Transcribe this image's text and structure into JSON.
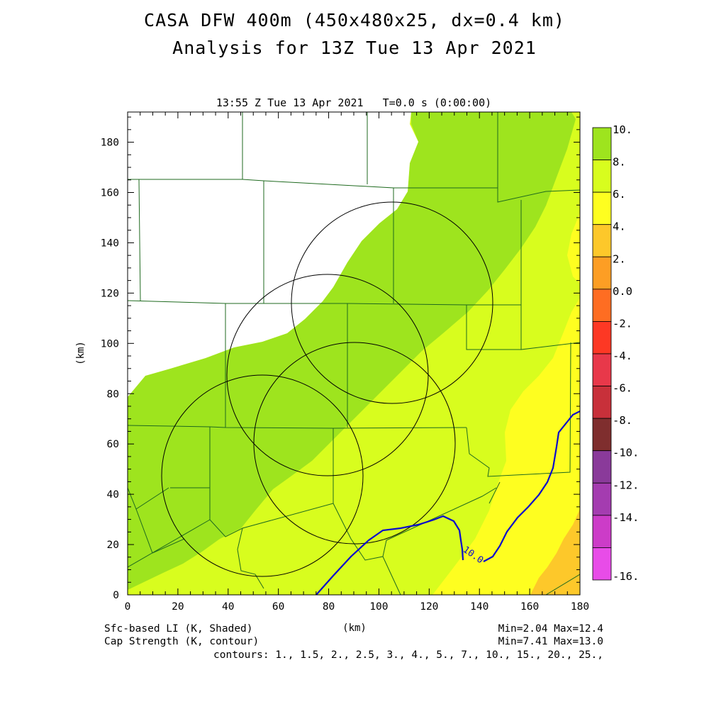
{
  "header": {
    "title_line1": "CASA DFW 400m (450x480x25, dx=0.4 km)",
    "title_line2": "Analysis for 13Z Tue 13 Apr 2021",
    "valid_time": "13:55 Z Tue 13 Apr 2021   T=0.0 s (0:00:00)"
  },
  "axes": {
    "xlabel": "(km)",
    "ylabel": "(km)",
    "x_ticks": [
      "0",
      "20",
      "40",
      "60",
      "80",
      "100",
      "120",
      "140",
      "160",
      "180"
    ],
    "y_ticks": [
      "0",
      "20",
      "40",
      "60",
      "80",
      "100",
      "120",
      "140",
      "160",
      "180"
    ],
    "xlim": [
      0,
      180
    ],
    "ylim": [
      0,
      192
    ]
  },
  "colorbar": {
    "labels": [
      "10.",
      "8.",
      "6.",
      "4.",
      "2.",
      "0.0",
      "-2.",
      "-4.",
      "-6.",
      "-8.",
      "-10.",
      "-12.",
      "-14.",
      "-16."
    ],
    "colors": [
      "#9ee41e",
      "#d8fd1e",
      "#fefe20",
      "#fdc82a",
      "#fd9e24",
      "#fe6d22",
      "#fd3824",
      "#e8384a",
      "#c8303a",
      "#7f2e2e",
      "#8a3a9a",
      "#a43cb0",
      "#cc3cc8",
      "#e84ce8"
    ]
  },
  "footer": {
    "shaded_label": "Sfc-based LI (K, Shaded)",
    "contour_label": "Cap Strength (K, contour)",
    "shaded_minmax": "Min=2.04 Max=12.4",
    "contour_minmax": "Min=7.41 Max=13.0",
    "contours": "contours: 1., 1.5, 2., 2.5, 3., 4., 5., 7., 10., 15., 20., 25.,"
  },
  "map": {
    "contour_label": "10.0",
    "radar_rings_center_km": [
      [
        60,
        48
      ],
      [
        80,
        88
      ],
      [
        95,
        62
      ],
      [
        105,
        116
      ]
    ],
    "radar_ring_radius_km": 39,
    "colors": {
      "white_region": "#ffffff",
      "band_10": "#9ee41e",
      "band_8": "#d8fd1e",
      "band_6": "#fefe20",
      "band_4": "#fdc82a",
      "county_lines": "#1f6a1f",
      "contour": "#0a0acc",
      "rings": "#000000"
    }
  }
}
